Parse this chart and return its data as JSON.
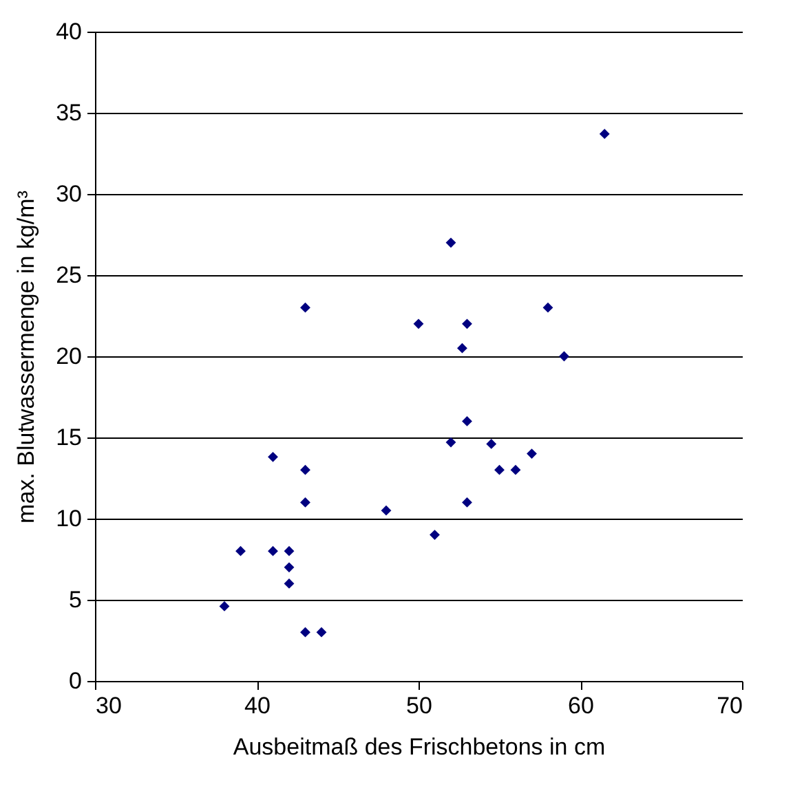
{
  "chart_data": {
    "type": "scatter",
    "xlabel": "Ausbeitmaß des Frischbetons in cm",
    "ylabel": "max. Blutwassermenge in kg/m³",
    "x": [
      61.5,
      52,
      43,
      58,
      50,
      53,
      52.7,
      59,
      53,
      52,
      54.5,
      57,
      41,
      43,
      55,
      56,
      43,
      53,
      48,
      51,
      39,
      41,
      42,
      42,
      42,
      38,
      43,
      44
    ],
    "series": [
      {
        "color": "#000080",
        "values": [
          33.7,
          27,
          23,
          23,
          22,
          22,
          20.5,
          20,
          16,
          14.7,
          14.6,
          14,
          13.8,
          13,
          13,
          13,
          11,
          11,
          10.5,
          9,
          8,
          8,
          8,
          7,
          6,
          4.6,
          3,
          3
        ]
      }
    ],
    "xlim": [
      30,
      70
    ],
    "xticks": [
      30,
      40,
      50,
      60,
      70
    ],
    "ylim": [
      0,
      40
    ],
    "yticks": [
      0,
      5,
      10,
      15,
      20,
      25,
      30,
      35,
      40
    ],
    "grid": "y",
    "marker": "diamond"
  }
}
